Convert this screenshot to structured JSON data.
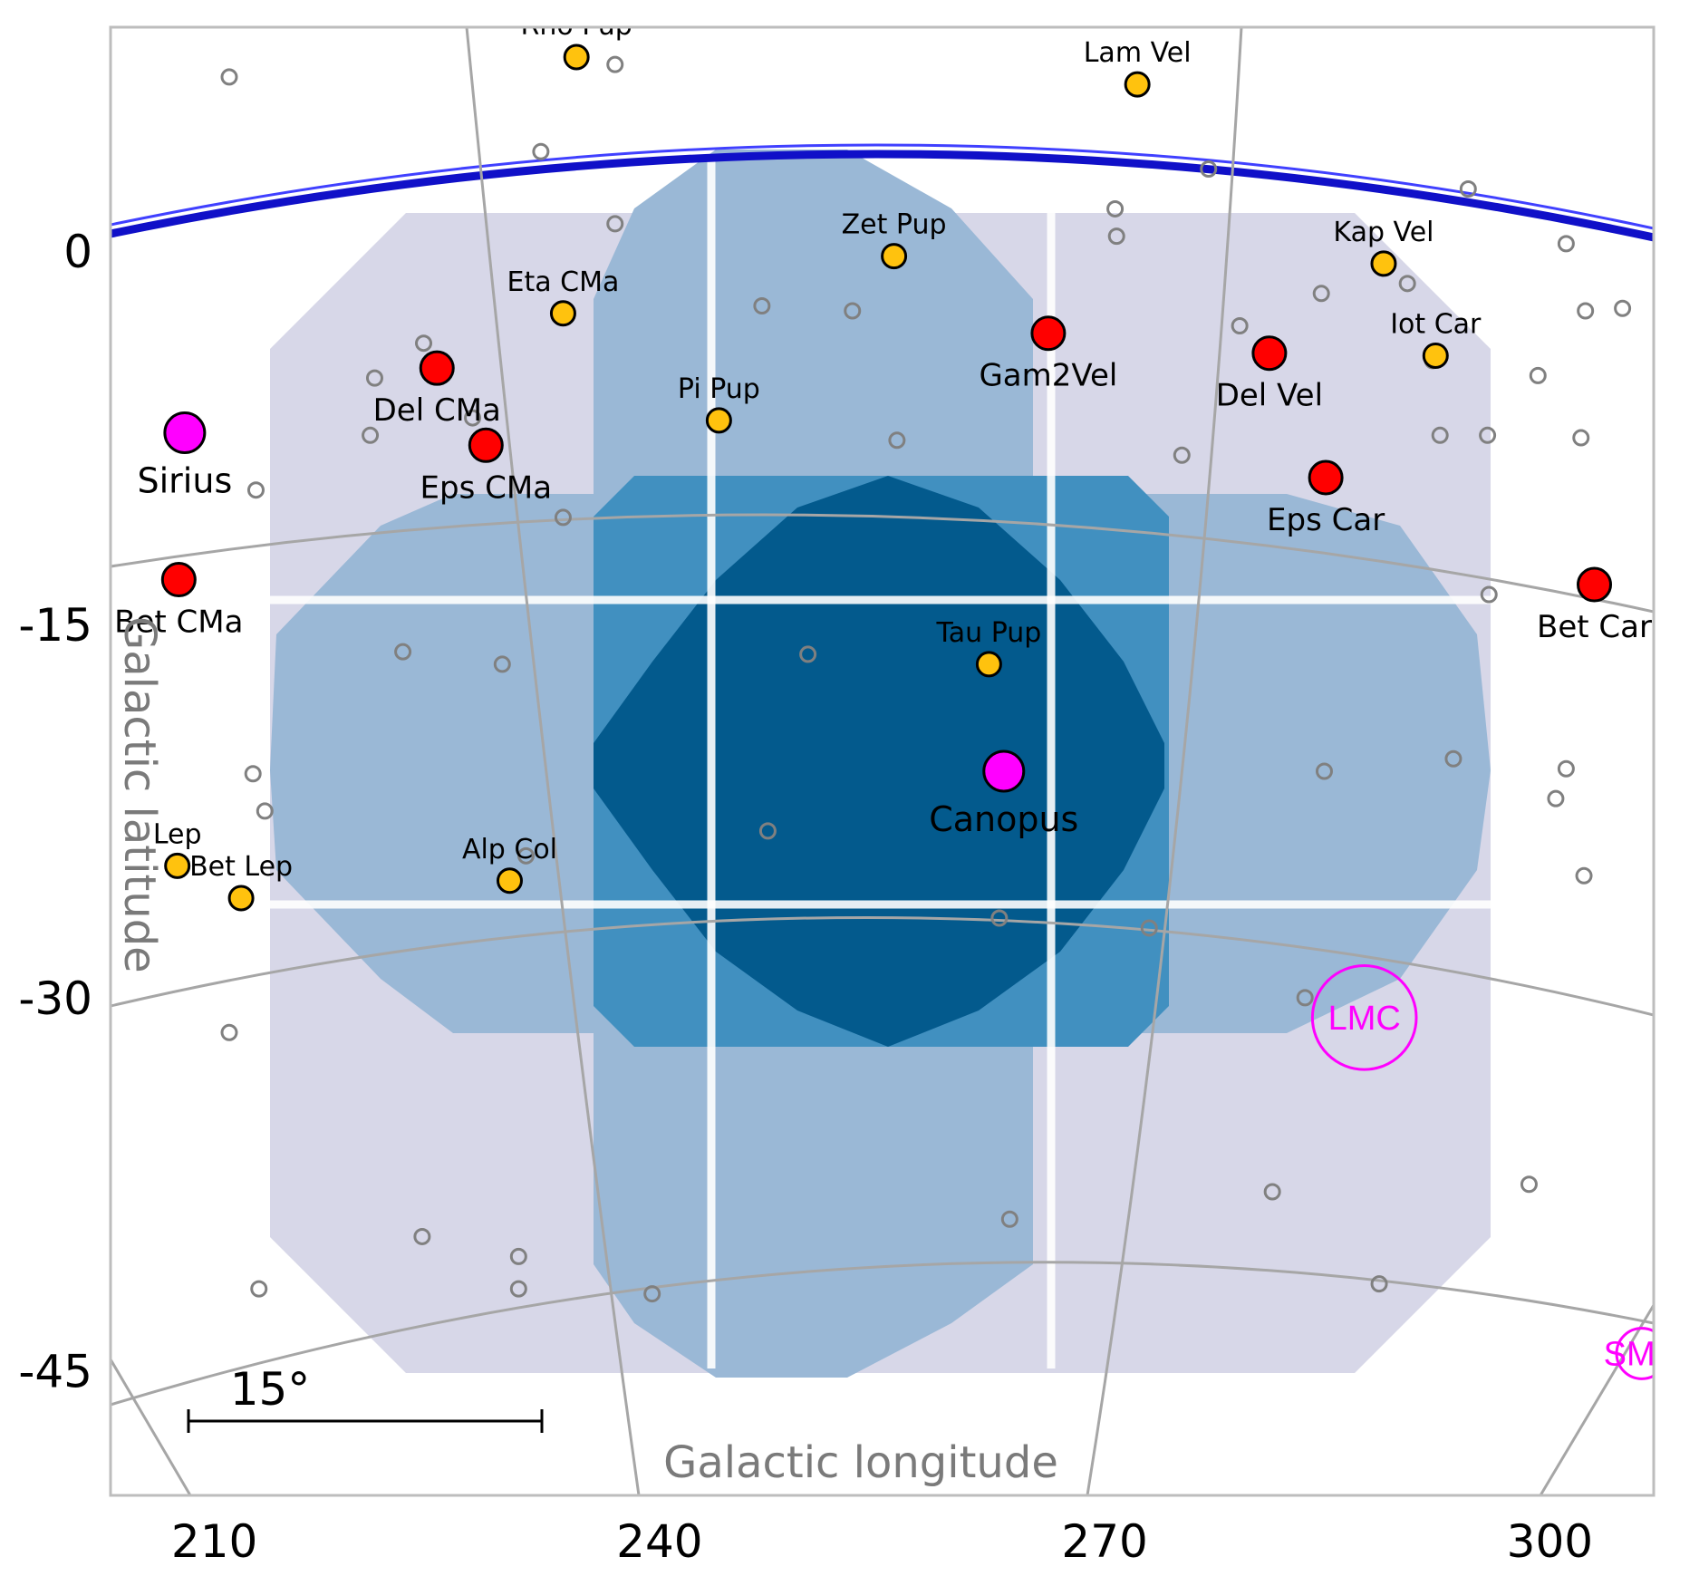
{
  "chart_data": {
    "type": "scatter",
    "title": "",
    "xlabel": "Galactic longitude",
    "ylabel": "Galactic latitude",
    "x_ticks": [
      210,
      240,
      270,
      300
    ],
    "y_ticks": [
      0,
      -15,
      -30,
      -45
    ],
    "xlim": [
      203,
      307
    ],
    "ylim": [
      -50,
      9
    ],
    "scale_bar_label": "15°",
    "colors": {
      "tier1": "#d7d7e8",
      "tier2": "#9ab8d6",
      "tier3": "#4190c0",
      "tier4": "#035a8d",
      "boundary": "#1010c8",
      "bright_star": "#ff00ff",
      "red_star": "#ff0000",
      "yellow_star": "#ffc20e",
      "faint_star": "#808080"
    },
    "bright_stars": [
      {
        "name": "Sirius",
        "l": 208,
        "b": -7.3
      },
      {
        "name": "Canopus",
        "l": 263.2,
        "b": -20.9
      }
    ],
    "red_stars": [
      {
        "name": "Del CMa",
        "l": 225.0,
        "b": -4.7
      },
      {
        "name": "Eps CMa",
        "l": 228.3,
        "b": -7.8
      },
      {
        "name": "Bet CMa",
        "l": 207.6,
        "b": -13.2
      },
      {
        "name": "Gam2Vel",
        "l": 266.2,
        "b": -3.3
      },
      {
        "name": "Del Vel",
        "l": 281.1,
        "b": -4.1
      },
      {
        "name": "Eps Car",
        "l": 284.9,
        "b": -9.1
      },
      {
        "name": "Bet Car",
        "l": 303.0,
        "b": -13.4
      }
    ],
    "yellow_stars": [
      {
        "name": "Rho Pup",
        "l": 234.4,
        "b": 7.8
      },
      {
        "name": "Lam Vel",
        "l": 272.2,
        "b": 6.7
      },
      {
        "name": "Zet Pup",
        "l": 255.8,
        "b": -0.2
      },
      {
        "name": "Kap Vel",
        "l": 288.8,
        "b": -0.5
      },
      {
        "name": "Eta CMa",
        "l": 233.5,
        "b": -2.5
      },
      {
        "name": "Iot Car",
        "l": 292.3,
        "b": -4.2
      },
      {
        "name": "Pi  Pup",
        "l": 244.0,
        "b": -6.8
      },
      {
        "name": "Tau Pup",
        "l": 262.2,
        "b": -16.6
      },
      {
        "name": "Alp Col",
        "l": 229.9,
        "b": -25.3
      },
      {
        "name": "Bet Lep",
        "l": 211.8,
        "b": -26.0
      },
      {
        "name": "Lep",
        "l": 207.5,
        "b": -24.7
      }
    ],
    "faint_stars": [
      [
        211,
        7.0
      ],
      [
        237,
        7.5
      ],
      [
        232,
        4.0
      ],
      [
        237,
        1.1
      ],
      [
        220.8,
        -5.1
      ],
      [
        224.1,
        -3.7
      ],
      [
        220.5,
        -7.4
      ],
      [
        227.4,
        -6.7
      ],
      [
        212.8,
        -9.6
      ],
      [
        233.5,
        -10.7
      ],
      [
        246.9,
        -2.2
      ],
      [
        253,
        -2.4
      ],
      [
        256,
        -7.6
      ],
      [
        270.7,
        1.7
      ],
      [
        270.8,
        0.6
      ],
      [
        277,
        3.3
      ],
      [
        279.1,
        -3.0
      ],
      [
        275.2,
        -8.2
      ],
      [
        284.6,
        -1.7
      ],
      [
        292.1,
        -4.4
      ],
      [
        292.6,
        -7.4
      ],
      [
        295.8,
        -7.4
      ],
      [
        290.4,
        -1.3
      ],
      [
        294.5,
        2.5
      ],
      [
        301.1,
        0.3
      ],
      [
        302.4,
        -2.4
      ],
      [
        304.9,
        -2.3
      ],
      [
        302.1,
        -7.5
      ],
      [
        299.2,
        -5.0
      ],
      [
        295.9,
        -13.8
      ],
      [
        293.5,
        -20.4
      ],
      [
        284.8,
        -20.9
      ],
      [
        301.1,
        -20.8
      ],
      [
        302.3,
        -25.1
      ],
      [
        300.4,
        -22.0
      ],
      [
        222.7,
        -16.1
      ],
      [
        229.4,
        -16.6
      ],
      [
        250,
        -16.2
      ],
      [
        212.6,
        -21.0
      ],
      [
        213.4,
        -22.5
      ],
      [
        231.0,
        -24.3
      ],
      [
        247.3,
        -23.3
      ],
      [
        273,
        -27.2
      ],
      [
        262.9,
        -26.8
      ],
      [
        283.5,
        -30.0
      ],
      [
        281.3,
        -37.8
      ],
      [
        263.6,
        -38.9
      ],
      [
        298.6,
        -37.5
      ],
      [
        288.5,
        -41.5
      ],
      [
        211.0,
        -31.4
      ],
      [
        224.0,
        -39.6
      ],
      [
        230.5,
        -40.4
      ],
      [
        230.5,
        -41.7
      ],
      [
        239.5,
        -41.9
      ],
      [
        213.0,
        -41.7
      ]
    ],
    "clouds": [
      {
        "name": "LMC",
        "l": 287.5,
        "b": -30.8,
        "r": 3.5
      },
      {
        "name": "SMC",
        "l": 306.2,
        "b": -44.3,
        "r": 1.7
      }
    ]
  }
}
